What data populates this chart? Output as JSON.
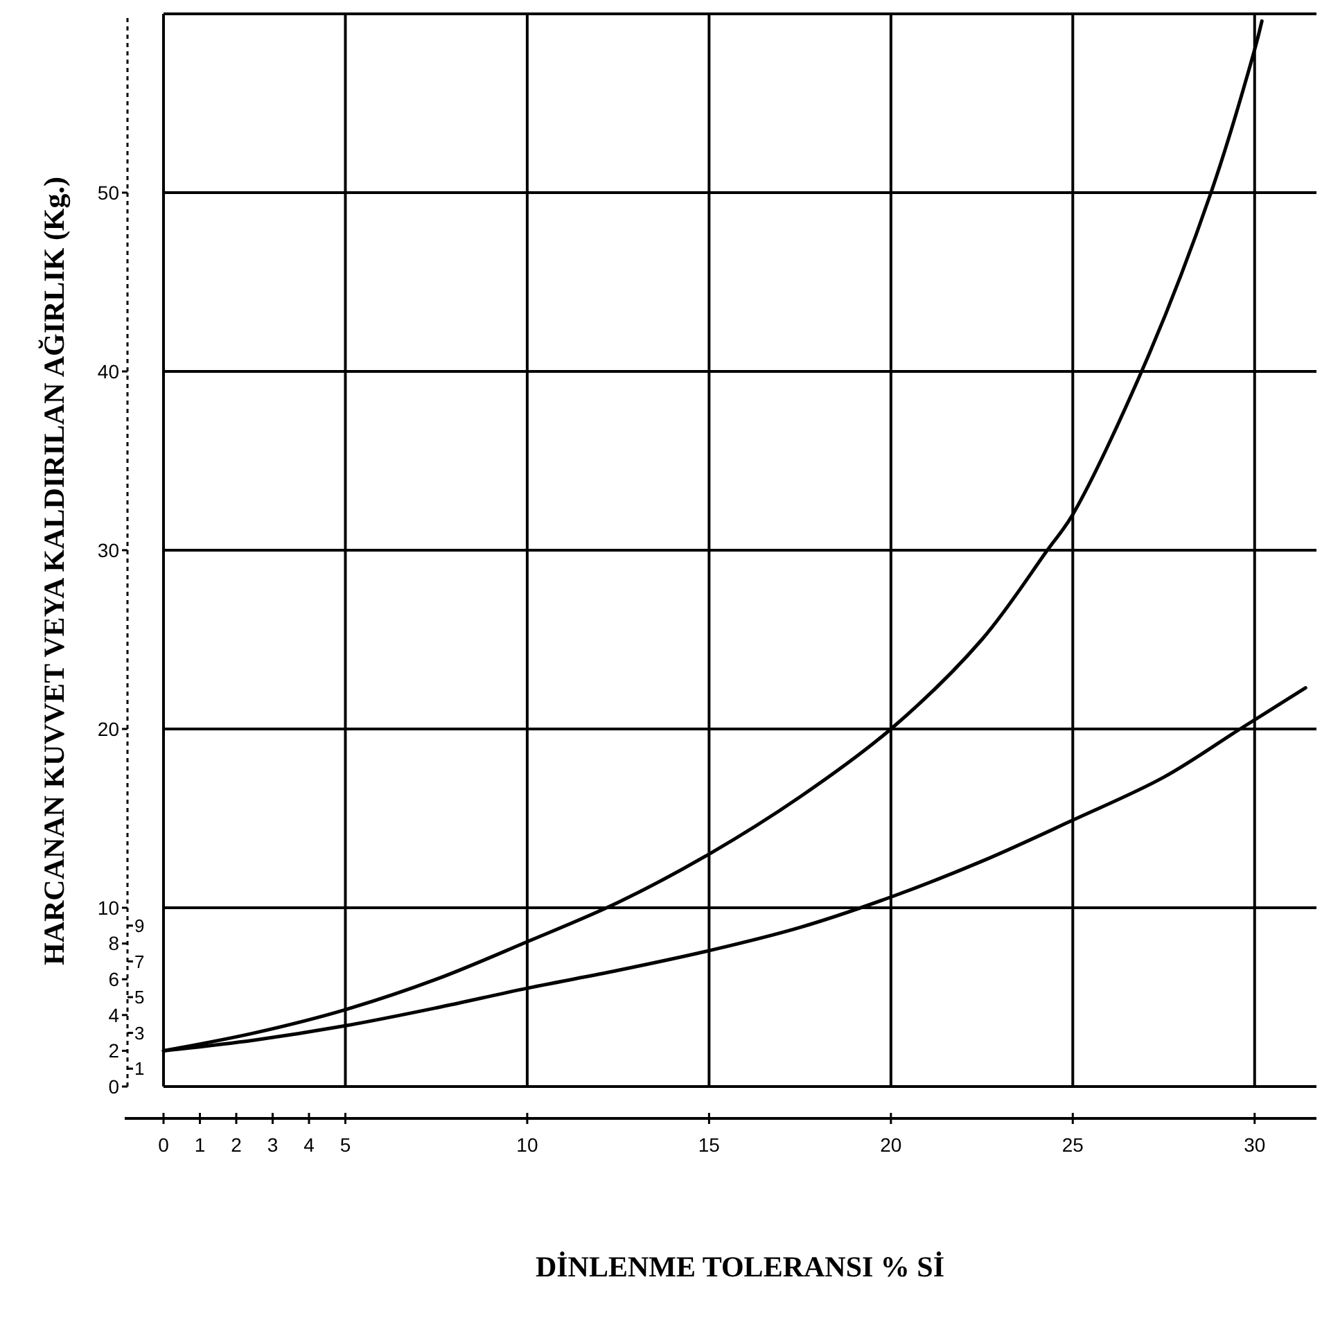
{
  "chart_data": {
    "type": "line",
    "xlabel": "DİNLENME TOLERANSI % Sİ",
    "ylabel": "HARCANAN KUVVET VEYA KALDIRILAN AĞIRLIK (Kg.)",
    "xlim": [
      0,
      31.7
    ],
    "xticks": [
      0,
      1,
      2,
      3,
      4,
      5,
      10,
      15,
      20,
      25,
      30
    ],
    "ylim": [
      0,
      60
    ],
    "yticks": [
      0,
      2,
      4,
      6,
      8,
      10,
      20,
      30,
      40,
      50
    ],
    "y2lim": [
      0,
      60
    ],
    "y2ticks": [
      1,
      3,
      5,
      7,
      9
    ],
    "grid": true,
    "marker": "none",
    "line_style": "solid",
    "series": [
      {
        "color": "#000000",
        "x": [
          0,
          2.5,
          5,
          7.5,
          10,
          12.5,
          15,
          17.5,
          20,
          22.5,
          24.3,
          25,
          27,
          28.8,
          30,
          30.2
        ],
        "values": [
          2,
          3,
          4.3,
          6,
          8.1,
          10.3,
          13,
          16.2,
          20,
          25,
          30,
          32,
          40.5,
          50,
          58,
          59.6
        ]
      },
      {
        "color": "#000000",
        "x": [
          0,
          2.5,
          5,
          7.5,
          10,
          12.5,
          15,
          17.5,
          20,
          22.5,
          25,
          27.5,
          29.6,
          31.4
        ],
        "values": [
          2,
          2.6,
          3.4,
          4.4,
          5.5,
          6.5,
          7.6,
          8.9,
          10.6,
          12.6,
          14.9,
          17.3,
          20,
          22.3
        ]
      }
    ]
  }
}
